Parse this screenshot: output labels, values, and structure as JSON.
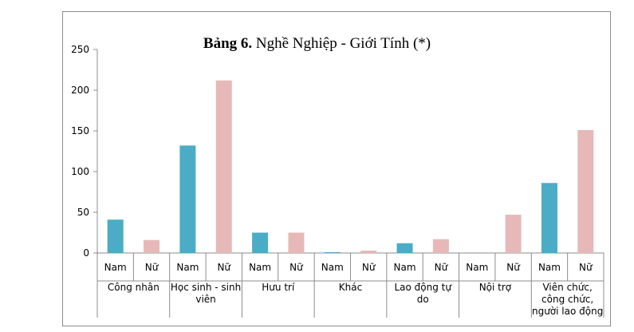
{
  "chart_data": {
    "type": "bar",
    "title_bold": "Bảng 6.",
    "title_rest": " Nghề Nghiệp - Giới Tính (*)",
    "ylim": [
      0,
      250
    ],
    "yticks": [
      0,
      50,
      100,
      150,
      200,
      250
    ],
    "categories": [
      [
        "Công nhân"
      ],
      [
        "Học sinh - sinh",
        "viên"
      ],
      [
        "Hưu trí"
      ],
      [
        "Khác"
      ],
      [
        "Lao động tự",
        "do"
      ],
      [
        "Nội trợ"
      ],
      [
        "Viên chức,",
        "công chức,",
        "người lao động"
      ]
    ],
    "series": [
      {
        "name": "Nam",
        "color": "#4bacc6",
        "values": [
          41,
          132,
          25,
          1,
          12,
          0,
          86
        ]
      },
      {
        "name": "Nữ",
        "color": "#e6b9b8",
        "values": [
          16,
          212,
          25,
          3,
          17,
          47,
          151
        ]
      }
    ],
    "grid": false
  }
}
